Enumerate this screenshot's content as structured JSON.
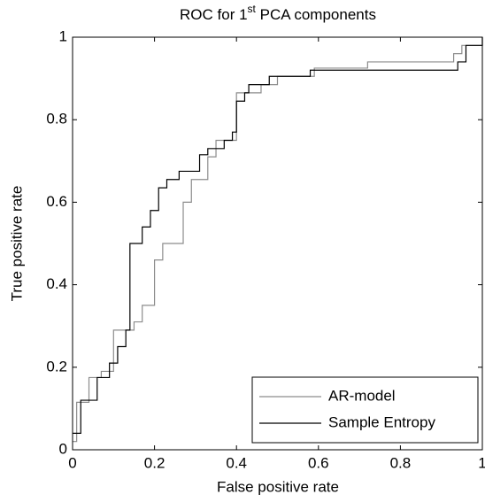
{
  "chart_data": {
    "type": "line",
    "title_parts": [
      "ROC for 1",
      "st",
      " PCA components"
    ],
    "x_label": "False positive rate",
    "y_label": "True positive rate",
    "xlim": [
      0,
      1
    ],
    "ylim": [
      0,
      1
    ],
    "xticks": [
      0,
      0.2,
      0.4,
      0.6,
      0.8,
      1
    ],
    "yticks": [
      0,
      0.2,
      0.4,
      0.6,
      0.8,
      1
    ],
    "grid": false,
    "legend_location": "southeast",
    "series": [
      {
        "name": "AR-model",
        "color": "#8c8c8c",
        "x": [
          0,
          0.01,
          0.01,
          0.04,
          0.04,
          0.07,
          0.07,
          0.1,
          0.1,
          0.15,
          0.15,
          0.17,
          0.17,
          0.2,
          0.2,
          0.22,
          0.22,
          0.27,
          0.27,
          0.29,
          0.29,
          0.33,
          0.33,
          0.35,
          0.35,
          0.4,
          0.4,
          0.46,
          0.46,
          0.5,
          0.5,
          0.59,
          0.59,
          0.72,
          0.72,
          0.93,
          0.93,
          0.95,
          0.95,
          1,
          1
        ],
        "values": [
          0.02,
          0.02,
          0.115,
          0.115,
          0.175,
          0.175,
          0.19,
          0.19,
          0.29,
          0.29,
          0.31,
          0.31,
          0.35,
          0.35,
          0.46,
          0.46,
          0.5,
          0.5,
          0.6,
          0.6,
          0.655,
          0.655,
          0.71,
          0.71,
          0.75,
          0.75,
          0.865,
          0.865,
          0.885,
          0.885,
          0.905,
          0.905,
          0.925,
          0.925,
          0.94,
          0.94,
          0.96,
          0.96,
          0.98,
          0.98,
          1
        ]
      },
      {
        "name": "Sample Entropy",
        "color": "#000000",
        "x": [
          0,
          0.02,
          0.02,
          0.06,
          0.06,
          0.09,
          0.09,
          0.11,
          0.11,
          0.13,
          0.13,
          0.14,
          0.14,
          0.17,
          0.17,
          0.19,
          0.19,
          0.21,
          0.21,
          0.23,
          0.23,
          0.26,
          0.26,
          0.31,
          0.31,
          0.33,
          0.33,
          0.37,
          0.37,
          0.39,
          0.39,
          0.4,
          0.4,
          0.42,
          0.42,
          0.43,
          0.43,
          0.48,
          0.48,
          0.58,
          0.58,
          0.94,
          0.94,
          0.96,
          0.96,
          1,
          1
        ],
        "values": [
          0.04,
          0.04,
          0.12,
          0.12,
          0.175,
          0.175,
          0.21,
          0.21,
          0.25,
          0.25,
          0.29,
          0.29,
          0.5,
          0.5,
          0.54,
          0.54,
          0.58,
          0.58,
          0.635,
          0.635,
          0.655,
          0.655,
          0.675,
          0.675,
          0.715,
          0.715,
          0.73,
          0.73,
          0.75,
          0.75,
          0.77,
          0.77,
          0.845,
          0.845,
          0.865,
          0.865,
          0.885,
          0.885,
          0.905,
          0.905,
          0.92,
          0.92,
          0.94,
          0.94,
          0.98,
          0.98,
          1
        ]
      }
    ]
  }
}
